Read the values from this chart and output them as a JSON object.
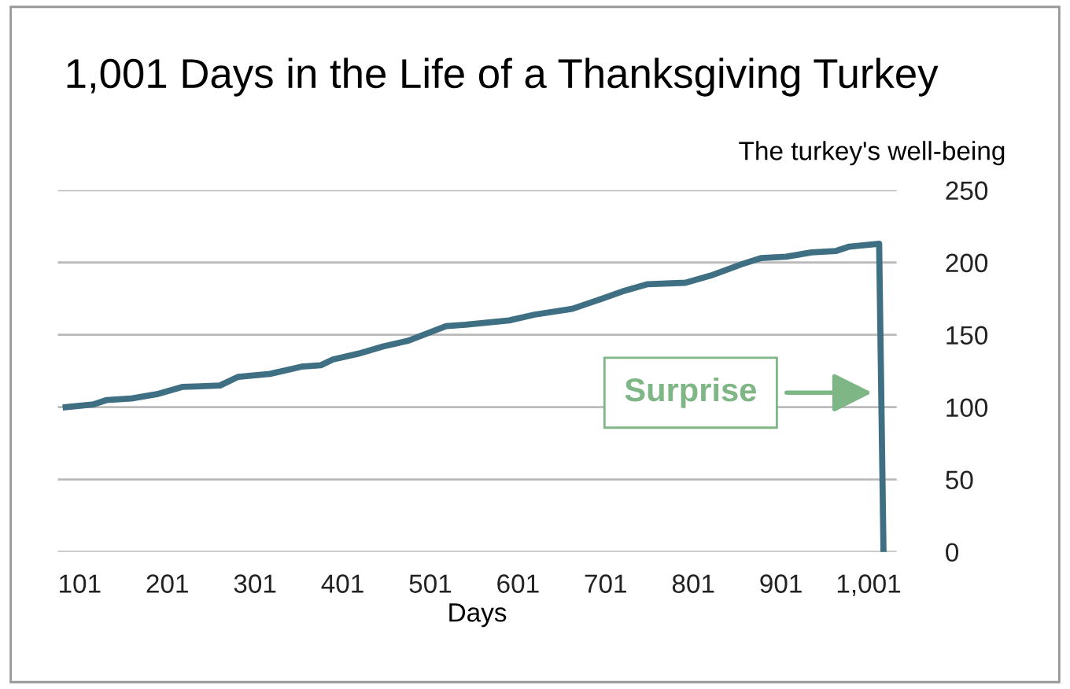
{
  "chart_data": {
    "type": "line",
    "title": "1,001 Days in the Life of a Thanksgiving Turkey",
    "xlabel": "Days",
    "ylabel": "The turkey's well-being",
    "x": [
      85,
      117,
      132,
      160,
      189,
      218,
      261,
      282,
      318,
      354,
      376,
      390,
      419,
      447,
      476,
      519,
      541,
      591,
      620,
      663,
      692,
      720,
      749,
      792,
      821,
      857,
      878,
      907,
      936,
      964,
      979,
      1013,
      1018
    ],
    "series": [
      {
        "color": "#3f6f82",
        "values": [
          100,
          102,
          105,
          106,
          109,
          114,
          115,
          121,
          123,
          128,
          129,
          133,
          137,
          142,
          146,
          156,
          157,
          160,
          164,
          168,
          174,
          180,
          185,
          186,
          191,
          199,
          203,
          204,
          207,
          208,
          211,
          213,
          0
        ]
      }
    ],
    "xlim": [
      76,
      1033
    ],
    "xticks": [
      101,
      201,
      301,
      401,
      501,
      601,
      701,
      801,
      901,
      {
        "value": 1001,
        "label": "1,001"
      }
    ],
    "ylim": [
      0,
      250
    ],
    "yticks": [
      0,
      50,
      100,
      150,
      200,
      250
    ],
    "grid": "y",
    "legend": false,
    "marker": "none",
    "line_style": "solid",
    "annotations": [
      {
        "text": "Surprise",
        "x": 1005,
        "y": 110
      }
    ]
  }
}
